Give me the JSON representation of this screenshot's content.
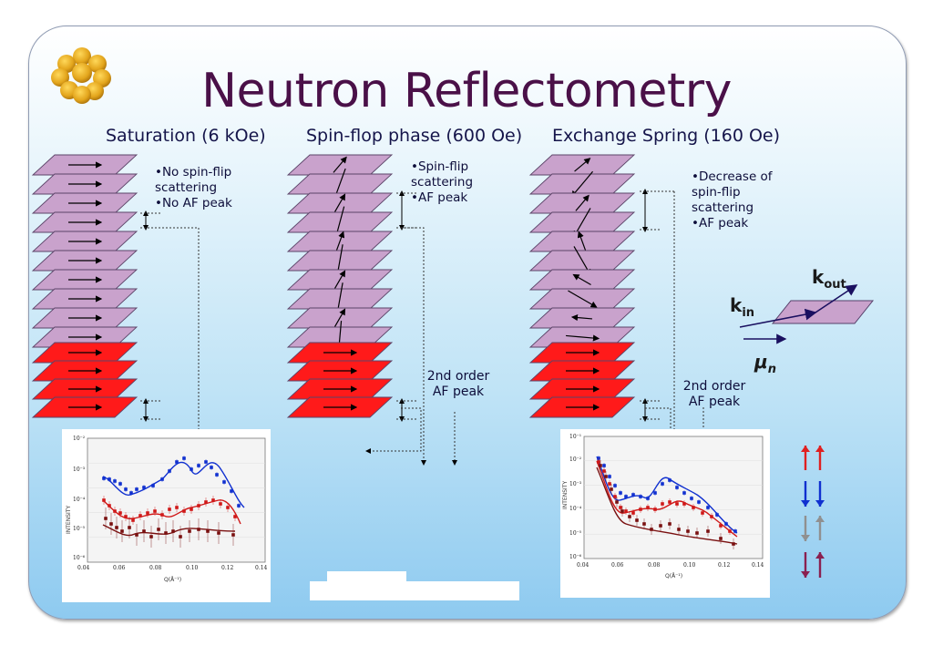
{
  "title": "Neutron Reflectometry",
  "phases": [
    {
      "label": "Saturation (6 kOe)"
    },
    {
      "label": "Spin-flop phase (600 Oe)"
    },
    {
      "label": "Exchange Spring (160 Oe)"
    }
  ],
  "notes": {
    "saturation": [
      "•No spin-flip",
      "scattering",
      "•No AF peak"
    ],
    "spinflop": [
      "•Spin-flip",
      "scattering",
      "•AF peak"
    ],
    "exchange": [
      "•Decrease of",
      "spin-flip",
      "scattering",
      "•AF peak"
    ]
  },
  "peak_labels": {
    "spinflop": [
      "2nd order",
      "AF peak"
    ],
    "exchange": [
      "2nd order",
      "AF peak"
    ]
  },
  "vectors": {
    "k_in": "k",
    "k_in_sub": "in",
    "k_out": "k",
    "k_out_sub": "out",
    "mu": "μ",
    "mu_sub": "n"
  },
  "plot_left": {
    "ylabel": "INTENSITY",
    "xlabel": "Q(Å⁻¹)",
    "yticks": [
      "10⁻²",
      "10⁻³",
      "10⁻⁴",
      "10⁻⁵",
      "10⁻⁶"
    ],
    "xticks": [
      "0.04",
      "0.06",
      "0.08",
      "0.10",
      "0.12",
      "0.14"
    ]
  },
  "plot_right": {
    "ylabel": "INTENSITY",
    "xlabel": "Q(Å⁻¹)",
    "yticks": [
      "10⁻¹",
      "10⁻²",
      "10⁻³",
      "10⁻⁴",
      "10⁻⁵",
      "10⁻⁶"
    ],
    "xticks": [
      "0.04",
      "0.06",
      "0.08",
      "0.10",
      "0.12",
      "0.14"
    ]
  },
  "legend": [
    {
      "name": "up-up",
      "color": "#e02020"
    },
    {
      "name": "down-down",
      "color": "#1030d0"
    },
    {
      "name": "up-down",
      "color": "#909090"
    },
    {
      "name": "down-up",
      "color": "#8a2050"
    }
  ],
  "colors": {
    "title": "#4a1048",
    "fm_layer": "#c9a2cc",
    "af_layer": "#ff1a1a"
  }
}
